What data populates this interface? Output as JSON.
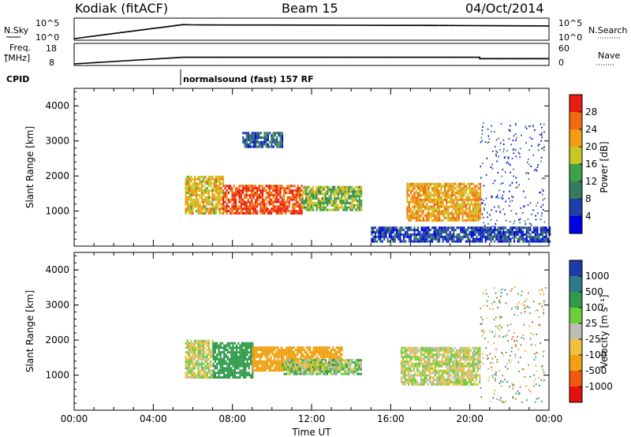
{
  "header": {
    "station": "Kodiak (fitACF)",
    "beam": "Beam 15",
    "date": "04/Oct/2014"
  },
  "strips": {
    "nsky_label": "N.Sky",
    "nsearch_label": "N.Search",
    "freq_label_line1": "Freq.",
    "freq_label_line2": "[MHz]",
    "nave_label": "Nave",
    "cpid_label": "CPID",
    "cpid_value": "normalsound (fast) 157 RF",
    "nsky_ticks": [
      "10^5",
      "10^0"
    ],
    "nsearch_ticks": [
      "10^5",
      "10^0"
    ],
    "freq_ticks": [
      "18",
      "8"
    ],
    "nave_ticks": [
      "60",
      "0"
    ]
  },
  "colors": {
    "power": [
      "#0000e6",
      "#1f3fa8",
      "#357b5e",
      "#3da04a",
      "#c7c823",
      "#f39c12",
      "#f06a10",
      "#e81c10"
    ],
    "velocity": [
      "#e61010",
      "#f05a10",
      "#f0a010",
      "#f0c040",
      "#bdbdb5",
      "#6acd3a",
      "#2f9a4a",
      "#2f7a8a",
      "#1c3ca8"
    ]
  },
  "chart_data": [
    {
      "type": "line",
      "panel": "nsky_nsearch",
      "x_unit": "hours UT",
      "xlim": [
        0,
        24
      ],
      "series": [
        {
          "name": "N.Sky",
          "x": [
            0,
            5.5,
            6,
            8,
            10,
            12,
            14,
            16,
            18,
            20,
            22,
            24
          ],
          "y": [
            0,
            5000,
            4500,
            4000,
            4000,
            3800,
            3500,
            3200,
            3000,
            2800,
            2500,
            2300
          ]
        },
        {
          "name": "N.Search",
          "x": [
            0,
            5.5,
            6,
            8,
            10,
            12,
            14,
            16,
            18,
            20,
            22,
            24
          ],
          "y": [
            0,
            4000,
            4200,
            4400,
            4300,
            4200,
            4000,
            3900,
            4500,
            3500,
            3000,
            2800
          ]
        }
      ]
    },
    {
      "type": "line",
      "panel": "freq_nave",
      "x_unit": "hours UT",
      "xlim": [
        0,
        24
      ],
      "series": [
        {
          "name": "Freq.",
          "x": [
            0,
            5.5,
            20.5,
            20.5,
            24
          ],
          "y": [
            8,
            11.5,
            11.5,
            10.8,
            10.8
          ]
        },
        {
          "name": "Nave",
          "x": [
            0,
            5.5,
            20.5,
            20.5,
            24
          ],
          "y": [
            0,
            20,
            20,
            15,
            15
          ]
        }
      ]
    },
    {
      "type": "heatmap",
      "panel": "power",
      "xlabel": "",
      "ylabel": "Slant Range [km]",
      "xlim": [
        0,
        24
      ],
      "ylim": [
        0,
        4500
      ],
      "yticks": [
        1000,
        2000,
        3000,
        4000
      ],
      "colorbar": {
        "label": "Power [dB]",
        "ticks": [
          4,
          8,
          12,
          16,
          20,
          24,
          28
        ],
        "range": [
          0,
          32
        ]
      },
      "regions": [
        {
          "t0": 5.6,
          "t1": 7.5,
          "r0": 900,
          "r1": 2000,
          "value": 20
        },
        {
          "t0": 7.5,
          "t1": 11.5,
          "r0": 900,
          "r1": 1700,
          "value": 28
        },
        {
          "t0": 11.5,
          "t1": 14.5,
          "r0": 1000,
          "r1": 1700,
          "value": 16
        },
        {
          "t0": 16.8,
          "t1": 20.5,
          "r0": 700,
          "r1": 1800,
          "value": 22
        },
        {
          "t0": 8.5,
          "t1": 10.5,
          "r0": 2800,
          "r1": 3200,
          "value": 8
        },
        {
          "t0": 15,
          "t1": 24,
          "r0": 100,
          "r1": 500,
          "value": 6
        }
      ]
    },
    {
      "type": "heatmap",
      "panel": "velocity",
      "xlabel": "Time UT",
      "ylabel": "Slant Range [km]",
      "xlim": [
        0,
        24
      ],
      "ylim": [
        0,
        4500
      ],
      "xticks": [
        "00:00",
        "04:00",
        "08:00",
        "12:00",
        "16:00",
        "20:00",
        "00:00"
      ],
      "yticks": [
        1000,
        2000,
        3000,
        4000
      ],
      "colorbar": {
        "label": "Velocity [m s⁻¹]",
        "ticks": [
          1000,
          500,
          100,
          25,
          -25,
          -100,
          -500,
          -1000
        ]
      },
      "regions": [
        {
          "t0": 5.6,
          "t1": 7.0,
          "r0": 900,
          "r1": 2000,
          "value": 0
        },
        {
          "t0": 7.0,
          "t1": 9.0,
          "r0": 900,
          "r1": 1900,
          "value": 200
        },
        {
          "t0": 9.0,
          "t1": 13.5,
          "r0": 1100,
          "r1": 1800,
          "value": -200
        },
        {
          "t0": 10.5,
          "t1": 14.5,
          "r0": 1000,
          "r1": 1400,
          "value": 50
        },
        {
          "t0": 16.5,
          "t1": 20.5,
          "r0": 700,
          "r1": 1800,
          "value": 0
        }
      ]
    }
  ]
}
